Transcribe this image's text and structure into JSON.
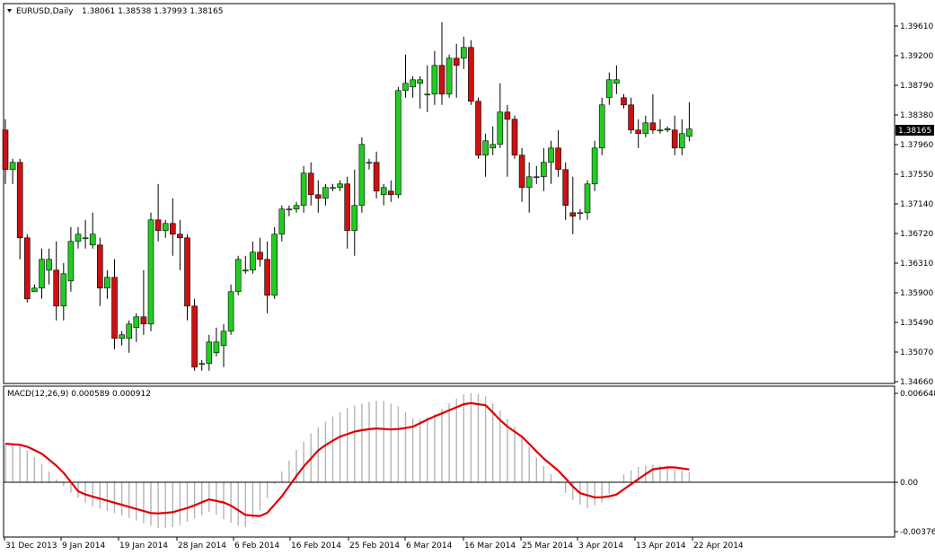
{
  "header": {
    "symbol": "EURUSD,Daily",
    "ohlc": "1.38061 1.38538 1.37993 1.38165"
  },
  "macd_header": {
    "label": "MACD(12,26,9) 0.000589 0.000912"
  },
  "price_axis": {
    "ticks": [
      "1.39610",
      "1.39200",
      "1.38790",
      "1.38380",
      "1.37960",
      "1.37550",
      "1.37140",
      "1.36720",
      "1.36310",
      "1.35900",
      "1.35490",
      "1.35070",
      "1.34660"
    ],
    "current_price_label": "1.38165"
  },
  "macd_axis": {
    "ticks": [
      "0.006648",
      "0.00",
      "-0.003766"
    ]
  },
  "date_axis": {
    "labels": [
      "31 Dec 2013",
      "9 Jan 2014",
      "19 Jan 2014",
      "28 Jan 2014",
      "6 Feb 2014",
      "16 Feb 2014",
      "25 Feb 2014",
      "6 Mar 2014",
      "16 Mar 2014",
      "25 Mar 2014",
      "3 Apr 2014",
      "13 Apr 2014",
      "22 Apr 2014"
    ]
  },
  "colors": {
    "bull": "#22cc22",
    "bear": "#cc1111",
    "macd_line": "#e00000",
    "histogram": "#b4b4b4",
    "frame": "#000000"
  },
  "chart_data": {
    "type": "candlestick",
    "symbol": "EURUSD",
    "timeframe": "Daily",
    "candles": [
      {
        "open": 1.3815,
        "high": 1.383,
        "low": 1.374,
        "close": 1.376
      },
      {
        "open": 1.376,
        "high": 1.3775,
        "low": 1.374,
        "close": 1.377
      },
      {
        "open": 1.377,
        "high": 1.3775,
        "low": 1.3635,
        "close": 1.3665
      },
      {
        "open": 1.3665,
        "high": 1.367,
        "low": 1.3575,
        "close": 1.358
      },
      {
        "open": 1.359,
        "high": 1.36,
        "low": 1.359,
        "close": 1.3595
      },
      {
        "open": 1.3595,
        "high": 1.365,
        "low": 1.358,
        "close": 1.3635
      },
      {
        "open": 1.362,
        "high": 1.365,
        "low": 1.36,
        "close": 1.3635
      },
      {
        "open": 1.362,
        "high": 1.366,
        "low": 1.355,
        "close": 1.357
      },
      {
        "open": 1.357,
        "high": 1.363,
        "low": 1.355,
        "close": 1.3615
      },
      {
        "open": 1.3605,
        "high": 1.368,
        "low": 1.359,
        "close": 1.366
      },
      {
        "open": 1.366,
        "high": 1.368,
        "low": 1.365,
        "close": 1.367
      },
      {
        "open": 1.3665,
        "high": 1.369,
        "low": 1.365,
        "close": 1.3665
      },
      {
        "open": 1.3655,
        "high": 1.37,
        "low": 1.365,
        "close": 1.367
      },
      {
        "open": 1.3655,
        "high": 1.3665,
        "low": 1.357,
        "close": 1.3595
      },
      {
        "open": 1.3595,
        "high": 1.362,
        "low": 1.358,
        "close": 1.361
      },
      {
        "open": 1.361,
        "high": 1.3635,
        "low": 1.351,
        "close": 1.3525
      },
      {
        "open": 1.3525,
        "high": 1.3535,
        "low": 1.3515,
        "close": 1.353
      },
      {
        "open": 1.3525,
        "high": 1.355,
        "low": 1.3505,
        "close": 1.3545
      },
      {
        "open": 1.354,
        "high": 1.356,
        "low": 1.352,
        "close": 1.3555
      },
      {
        "open": 1.3555,
        "high": 1.362,
        "low": 1.353,
        "close": 1.3545
      },
      {
        "open": 1.3545,
        "high": 1.37,
        "low": 1.3535,
        "close": 1.369
      },
      {
        "open": 1.369,
        "high": 1.374,
        "low": 1.366,
        "close": 1.3675
      },
      {
        "open": 1.3675,
        "high": 1.369,
        "low": 1.3665,
        "close": 1.3685
      },
      {
        "open": 1.3685,
        "high": 1.372,
        "low": 1.364,
        "close": 1.367
      },
      {
        "open": 1.367,
        "high": 1.369,
        "low": 1.362,
        "close": 1.3665
      },
      {
        "open": 1.3665,
        "high": 1.367,
        "low": 1.355,
        "close": 1.357
      },
      {
        "open": 1.357,
        "high": 1.358,
        "low": 1.348,
        "close": 1.3485
      },
      {
        "open": 1.349,
        "high": 1.3495,
        "low": 1.348,
        "close": 1.349
      },
      {
        "open": 1.349,
        "high": 1.353,
        "low": 1.348,
        "close": 1.352
      },
      {
        "open": 1.3505,
        "high": 1.354,
        "low": 1.35,
        "close": 1.352
      },
      {
        "open": 1.3515,
        "high": 1.3545,
        "low": 1.3485,
        "close": 1.3535
      },
      {
        "open": 1.3535,
        "high": 1.36,
        "low": 1.353,
        "close": 1.359
      },
      {
        "open": 1.359,
        "high": 1.364,
        "low": 1.3585,
        "close": 1.3635
      },
      {
        "open": 1.362,
        "high": 1.364,
        "low": 1.3615,
        "close": 1.362
      },
      {
        "open": 1.362,
        "high": 1.366,
        "low": 1.3615,
        "close": 1.3645
      },
      {
        "open": 1.3645,
        "high": 1.3665,
        "low": 1.3625,
        "close": 1.3635
      },
      {
        "open": 1.3635,
        "high": 1.366,
        "low": 1.356,
        "close": 1.3585
      },
      {
        "open": 1.3585,
        "high": 1.368,
        "low": 1.358,
        "close": 1.367
      },
      {
        "open": 1.367,
        "high": 1.371,
        "low": 1.366,
        "close": 1.3705
      },
      {
        "open": 1.3705,
        "high": 1.371,
        "low": 1.3695,
        "close": 1.3705
      },
      {
        "open": 1.3705,
        "high": 1.3715,
        "low": 1.37,
        "close": 1.371
      },
      {
        "open": 1.371,
        "high": 1.3765,
        "low": 1.37,
        "close": 1.3755
      },
      {
        "open": 1.3755,
        "high": 1.377,
        "low": 1.371,
        "close": 1.3725
      },
      {
        "open": 1.3725,
        "high": 1.3745,
        "low": 1.37,
        "close": 1.372
      },
      {
        "open": 1.372,
        "high": 1.374,
        "low": 1.371,
        "close": 1.3735
      },
      {
        "open": 1.3735,
        "high": 1.374,
        "low": 1.373,
        "close": 1.3735
      },
      {
        "open": 1.3735,
        "high": 1.3745,
        "low": 1.373,
        "close": 1.374
      },
      {
        "open": 1.374,
        "high": 1.375,
        "low": 1.365,
        "close": 1.3675
      },
      {
        "open": 1.3675,
        "high": 1.376,
        "low": 1.364,
        "close": 1.371
      },
      {
        "open": 1.371,
        "high": 1.3805,
        "low": 1.37,
        "close": 1.3795
      },
      {
        "open": 1.377,
        "high": 1.3775,
        "low": 1.376,
        "close": 1.377
      },
      {
        "open": 1.377,
        "high": 1.3785,
        "low": 1.372,
        "close": 1.373
      },
      {
        "open": 1.3725,
        "high": 1.374,
        "low": 1.371,
        "close": 1.3735
      },
      {
        "open": 1.373,
        "high": 1.3745,
        "low": 1.3715,
        "close": 1.3725
      },
      {
        "open": 1.3725,
        "high": 1.3875,
        "low": 1.372,
        "close": 1.387
      },
      {
        "open": 1.387,
        "high": 1.392,
        "low": 1.386,
        "close": 1.388
      },
      {
        "open": 1.3875,
        "high": 1.389,
        "low": 1.386,
        "close": 1.3885
      },
      {
        "open": 1.388,
        "high": 1.389,
        "low": 1.3845,
        "close": 1.3885
      },
      {
        "open": 1.3865,
        "high": 1.3905,
        "low": 1.384,
        "close": 1.3865
      },
      {
        "open": 1.3865,
        "high": 1.3925,
        "low": 1.385,
        "close": 1.3905
      },
      {
        "open": 1.3905,
        "high": 1.3965,
        "low": 1.385,
        "close": 1.3865
      },
      {
        "open": 1.3865,
        "high": 1.392,
        "low": 1.386,
        "close": 1.3915
      },
      {
        "open": 1.3915,
        "high": 1.3935,
        "low": 1.386,
        "close": 1.3905
      },
      {
        "open": 1.3915,
        "high": 1.3945,
        "low": 1.39,
        "close": 1.393
      },
      {
        "open": 1.393,
        "high": 1.394,
        "low": 1.385,
        "close": 1.3855
      },
      {
        "open": 1.3855,
        "high": 1.386,
        "low": 1.3775,
        "close": 1.378
      },
      {
        "open": 1.378,
        "high": 1.381,
        "low": 1.375,
        "close": 1.38
      },
      {
        "open": 1.379,
        "high": 1.382,
        "low": 1.378,
        "close": 1.3795
      },
      {
        "open": 1.3795,
        "high": 1.388,
        "low": 1.379,
        "close": 1.384
      },
      {
        "open": 1.384,
        "high": 1.385,
        "low": 1.375,
        "close": 1.383
      },
      {
        "open": 1.383,
        "high": 1.3835,
        "low": 1.3775,
        "close": 1.378
      },
      {
        "open": 1.378,
        "high": 1.379,
        "low": 1.3715,
        "close": 1.3735
      },
      {
        "open": 1.3735,
        "high": 1.377,
        "low": 1.37,
        "close": 1.375
      },
      {
        "open": 1.375,
        "high": 1.3765,
        "low": 1.374,
        "close": 1.375
      },
      {
        "open": 1.375,
        "high": 1.379,
        "low": 1.373,
        "close": 1.377
      },
      {
        "open": 1.377,
        "high": 1.38,
        "low": 1.374,
        "close": 1.379
      },
      {
        "open": 1.379,
        "high": 1.3815,
        "low": 1.375,
        "close": 1.376
      },
      {
        "open": 1.376,
        "high": 1.377,
        "low": 1.369,
        "close": 1.371
      },
      {
        "open": 1.37,
        "high": 1.375,
        "low": 1.367,
        "close": 1.3695
      },
      {
        "open": 1.37,
        "high": 1.3705,
        "low": 1.369,
        "close": 1.37
      },
      {
        "open": 1.37,
        "high": 1.3745,
        "low": 1.369,
        "close": 1.374
      },
      {
        "open": 1.374,
        "high": 1.38,
        "low": 1.373,
        "close": 1.379
      },
      {
        "open": 1.379,
        "high": 1.386,
        "low": 1.378,
        "close": 1.385
      },
      {
        "open": 1.386,
        "high": 1.3895,
        "low": 1.385,
        "close": 1.3885
      },
      {
        "open": 1.388,
        "high": 1.3905,
        "low": 1.3865,
        "close": 1.3885
      },
      {
        "open": 1.386,
        "high": 1.3865,
        "low": 1.3845,
        "close": 1.385
      },
      {
        "open": 1.385,
        "high": 1.386,
        "low": 1.381,
        "close": 1.3815
      },
      {
        "open": 1.3815,
        "high": 1.383,
        "low": 1.379,
        "close": 1.381
      },
      {
        "open": 1.381,
        "high": 1.3835,
        "low": 1.3805,
        "close": 1.3825
      },
      {
        "open": 1.3825,
        "high": 1.3865,
        "low": 1.381,
        "close": 1.3815
      },
      {
        "open": 1.3815,
        "high": 1.383,
        "low": 1.381,
        "close": 1.3815
      },
      {
        "open": 1.3815,
        "high": 1.382,
        "low": 1.3812,
        "close": 1.3817
      },
      {
        "open": 1.3815,
        "high": 1.3835,
        "low": 1.378,
        "close": 1.379
      },
      {
        "open": 1.379,
        "high": 1.383,
        "low": 1.378,
        "close": 1.381
      },
      {
        "open": 1.38061,
        "high": 1.38538,
        "low": 1.37993,
        "close": 1.38165
      }
    ],
    "macd": {
      "name": "MACD(12,26,9)",
      "macd_value": 0.000589,
      "signal_value": 0.000912,
      "histogram_key": [
        0.003,
        0.0028,
        0.0016,
        0.0002,
        -0.001,
        -0.0018,
        -0.0022,
        -0.0026,
        -0.0031,
        -0.0035,
        -0.0034,
        -0.0028,
        -0.0022,
        -0.003,
        -0.0035,
        -0.002,
        0.0005,
        0.0025,
        0.004,
        0.005,
        0.0058,
        0.0062,
        0.0064,
        0.0059,
        0.0048,
        0.0052,
        0.0062,
        0.007,
        0.0068,
        0.0055,
        0.004,
        0.002,
        0.0005,
        -0.0012,
        -0.002,
        -0.0015,
        0.0005,
        0.0012,
        0.0014,
        0.001,
        0.0008
      ],
      "signal_key": [
        0.003,
        0.0029,
        0.0022,
        0.001,
        -0.0008,
        -0.0012,
        -0.0016,
        -0.002,
        -0.0024,
        -0.0023,
        -0.0019,
        -0.0013,
        -0.0016,
        -0.0025,
        -0.0026,
        -0.001,
        0.001,
        0.0026,
        0.0035,
        0.004,
        0.0042,
        0.0041,
        0.0043,
        0.005,
        0.0056,
        0.0062,
        0.006,
        0.0045,
        0.0035,
        0.002,
        0.0008,
        -0.0008,
        -0.0012,
        -0.001,
        0.0,
        0.001,
        0.0012,
        0.001
      ]
    },
    "price_ylim": [
      1.3466,
      1.399
    ],
    "macd_ylim": [
      -0.003766,
      0.006648
    ],
    "current_price": 1.38165,
    "grid": false,
    "legend": "top-left"
  }
}
